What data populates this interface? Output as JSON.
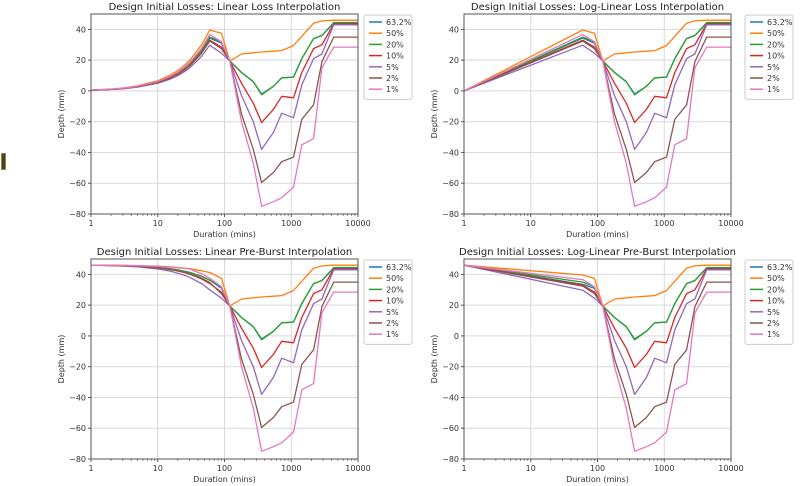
{
  "figure": {
    "side_marker_color": "#4a4310"
  },
  "series_meta": [
    {
      "name": "63.2%",
      "color": "#1f77b4"
    },
    {
      "name": "50%",
      "color": "#ff7f0e"
    },
    {
      "name": "20%",
      "color": "#2ca02c"
    },
    {
      "name": "10%",
      "color": "#d62728"
    },
    {
      "name": "5%",
      "color": "#9467bd"
    },
    {
      "name": "2%",
      "color": "#8c564b"
    },
    {
      "name": "1%",
      "color": "#e377c2"
    }
  ],
  "chart_data": [
    {
      "type": "line",
      "title": "Design Initial Losses: Linear Loss Interpolation",
      "xlabel": "Duration (mins)",
      "ylabel": "Depth (mm)",
      "xscale": "log",
      "xlim": [
        1,
        10000
      ],
      "ylim": [
        -80,
        50
      ],
      "xticks": [
        1,
        10,
        100,
        1000,
        10000
      ],
      "xtick_labels": [
        "1",
        "10",
        "100",
        "1000",
        "10000"
      ],
      "yticks": [
        -80,
        -60,
        -40,
        -20,
        0,
        20,
        40
      ],
      "ytick_labels": [
        "−80",
        "−60",
        "−40",
        "−20",
        "0",
        "20",
        "40"
      ],
      "grid": true,
      "legend": "outside-right-top",
      "x": [
        1,
        2,
        3,
        5,
        10,
        15,
        20,
        25,
        30,
        45,
        60,
        90,
        120,
        180,
        270,
        360,
        540,
        720,
        1080,
        1440,
        2160,
        2880,
        4320,
        10080
      ],
      "series": [
        {
          "name": "63.2%",
          "values": [
            0.5,
            1.0,
            1.6,
            2.9,
            5.7,
            8.7,
            11.5,
            14.4,
            17.2,
            25.8,
            34.4,
            31.0,
            19.5,
            12.0,
            6.0,
            -2.0,
            3.0,
            8.5,
            9.0,
            21.0,
            34.0,
            36.0,
            44.0,
            44.0
          ]
        },
        {
          "name": "50%",
          "values": [
            0.6,
            1.2,
            1.9,
            3.3,
            6.6,
            10.0,
            13.2,
            16.5,
            19.8,
            29.7,
            39.6,
            37.5,
            19.5,
            24.0,
            24.8,
            25.3,
            25.8,
            26.2,
            29.5,
            35.5,
            44.0,
            45.5,
            46.0,
            46.0
          ]
        },
        {
          "name": "20%",
          "values": [
            0.5,
            1.0,
            1.6,
            2.9,
            5.8,
            8.8,
            11.7,
            14.6,
            17.5,
            26.3,
            35.0,
            32.0,
            19.5,
            12.0,
            6.0,
            -2.5,
            3.0,
            8.5,
            9.0,
            21.0,
            34.0,
            36.0,
            44.5,
            44.5
          ]
        },
        {
          "name": "10%",
          "values": [
            0.5,
            1.0,
            1.6,
            2.8,
            5.5,
            8.3,
            11.0,
            13.8,
            16.5,
            24.8,
            33.0,
            28.5,
            19.5,
            5.0,
            -8.0,
            -20.5,
            -12.0,
            -3.5,
            -4.5,
            12.0,
            27.5,
            30.0,
            43.5,
            43.5
          ]
        },
        {
          "name": "5%",
          "values": [
            0.5,
            0.9,
            1.4,
            2.5,
            5.0,
            7.5,
            9.9,
            12.4,
            14.9,
            22.3,
            29.7,
            24.5,
            19.5,
            -3.0,
            -20.0,
            -38.0,
            -27.0,
            -14.5,
            -17.5,
            4.0,
            21.0,
            24.0,
            43.0,
            43.0
          ]
        },
        {
          "name": "2%",
          "values": [
            0.5,
            1.0,
            1.6,
            2.7,
            5.4,
            8.1,
            10.8,
            13.5,
            16.2,
            24.3,
            32.4,
            27.5,
            19.5,
            -15.0,
            -38.0,
            -59.5,
            -53.0,
            -46.0,
            -43.0,
            -18.5,
            -9.0,
            19.0,
            35.0,
            35.0
          ]
        },
        {
          "name": "1%",
          "values": [
            0.6,
            1.2,
            1.8,
            3.0,
            6.1,
            9.2,
            12.2,
            15.3,
            18.3,
            27.5,
            36.6,
            32.0,
            19.5,
            -20.0,
            -47.0,
            -75.0,
            -72.0,
            -69.5,
            -62.5,
            -35.0,
            -31.0,
            15.0,
            28.5,
            28.5
          ]
        }
      ]
    },
    {
      "type": "line",
      "title": "Design Initial Losses: Log-Linear Loss Interpolation",
      "xlabel": "Duration (mins)",
      "ylabel": "Depth (mm)",
      "xscale": "log",
      "xlim": [
        1,
        10000
      ],
      "ylim": [
        -80,
        50
      ],
      "xticks": [
        1,
        10,
        100,
        1000,
        10000
      ],
      "xtick_labels": [
        "1",
        "10",
        "100",
        "1000",
        "10000"
      ],
      "yticks": [
        -80,
        -60,
        -40,
        -20,
        0,
        20,
        40
      ],
      "ytick_labels": [
        "−80",
        "−60",
        "−40",
        "−20",
        "0",
        "20",
        "40"
      ],
      "grid": true,
      "legend": "outside-right-top",
      "x": [
        1,
        60,
        90,
        120,
        180,
        270,
        360,
        540,
        720,
        1080,
        1440,
        2160,
        2880,
        4320,
        10080
      ],
      "series": [
        {
          "name": "63.2%",
          "values": [
            0,
            34.4,
            31.0,
            19.5,
            12.0,
            6.0,
            -2.0,
            3.0,
            8.5,
            9.0,
            21.0,
            34.0,
            36.0,
            44.0,
            44.0
          ]
        },
        {
          "name": "50%",
          "values": [
            0,
            39.6,
            37.5,
            19.5,
            24.0,
            24.8,
            25.3,
            25.8,
            26.2,
            29.5,
            35.5,
            44.0,
            45.5,
            46.0,
            46.0
          ]
        },
        {
          "name": "20%",
          "values": [
            0,
            35.0,
            32.0,
            19.5,
            12.0,
            6.0,
            -2.5,
            3.0,
            8.5,
            9.0,
            21.0,
            34.0,
            36.0,
            44.5,
            44.5
          ]
        },
        {
          "name": "10%",
          "values": [
            0,
            33.0,
            28.5,
            19.5,
            5.0,
            -8.0,
            -20.5,
            -12.0,
            -3.5,
            -4.5,
            12.0,
            27.5,
            30.0,
            43.5,
            43.5
          ]
        },
        {
          "name": "5%",
          "values": [
            0,
            29.7,
            24.5,
            19.5,
            -3.0,
            -20.0,
            -38.0,
            -27.0,
            -14.5,
            -17.5,
            4.0,
            21.0,
            24.0,
            43.0,
            43.0
          ]
        },
        {
          "name": "2%",
          "values": [
            0,
            32.4,
            27.5,
            19.5,
            -15.0,
            -38.0,
            -59.5,
            -53.0,
            -46.0,
            -43.0,
            -18.5,
            -9.0,
            19.0,
            35.0,
            35.0
          ]
        },
        {
          "name": "1%",
          "values": [
            0,
            36.6,
            32.0,
            19.5,
            -20.0,
            -47.0,
            -75.0,
            -72.0,
            -69.5,
            -62.5,
            -35.0,
            -31.0,
            15.0,
            28.5,
            28.5
          ]
        }
      ]
    },
    {
      "type": "line",
      "title": "Design Initial Losses: Linear Pre-Burst Interpolation",
      "xlabel": "Duration (mins)",
      "ylabel": "Depth (mm)",
      "xscale": "log",
      "xlim": [
        1,
        10000
      ],
      "ylim": [
        -80,
        50
      ],
      "xticks": [
        1,
        10,
        100,
        1000,
        10000
      ],
      "xtick_labels": [
        "1",
        "10",
        "100",
        "1000",
        "10000"
      ],
      "yticks": [
        -80,
        -60,
        -40,
        -20,
        0,
        20,
        40
      ],
      "ytick_labels": [
        "−80",
        "−60",
        "−40",
        "−20",
        "0",
        "20",
        "40"
      ],
      "grid": true,
      "legend": "outside-right-top",
      "x": [
        1,
        2,
        3,
        5,
        10,
        15,
        20,
        25,
        30,
        45,
        60,
        90,
        120,
        180,
        270,
        360,
        540,
        720,
        1080,
        1440,
        2160,
        2880,
        4320,
        10080
      ],
      "series": [
        {
          "name": "63.2%",
          "values": [
            46.0,
            45.8,
            45.7,
            45.4,
            44.5,
            43.7,
            42.9,
            42.1,
            41.3,
            38.8,
            36.3,
            31.0,
            19.5,
            12.0,
            6.0,
            -2.0,
            3.0,
            8.5,
            9.0,
            21.0,
            34.0,
            36.0,
            44.0,
            44.0
          ]
        },
        {
          "name": "50%",
          "values": [
            46.0,
            46.0,
            45.9,
            45.7,
            45.3,
            44.9,
            44.5,
            44.1,
            43.7,
            42.4,
            41.2,
            37.5,
            19.5,
            24.0,
            24.8,
            25.3,
            25.8,
            26.2,
            29.5,
            35.5,
            44.0,
            45.5,
            46.0,
            46.0
          ]
        },
        {
          "name": "20%",
          "values": [
            46.0,
            45.8,
            45.7,
            45.4,
            44.5,
            43.7,
            42.9,
            42.1,
            41.3,
            38.8,
            36.3,
            32.0,
            19.5,
            12.0,
            6.0,
            -2.5,
            3.0,
            8.5,
            9.0,
            21.0,
            34.0,
            36.0,
            44.5,
            44.5
          ]
        },
        {
          "name": "10%",
          "values": [
            46.0,
            45.8,
            45.6,
            45.2,
            44.2,
            43.2,
            42.2,
            41.2,
            40.2,
            37.1,
            34.1,
            28.5,
            19.5,
            5.0,
            -8.0,
            -20.5,
            -12.0,
            -3.5,
            -4.5,
            12.0,
            27.5,
            30.0,
            43.5,
            43.5
          ]
        },
        {
          "name": "5%",
          "values": [
            46.0,
            45.7,
            45.4,
            44.9,
            43.5,
            42.2,
            40.8,
            39.5,
            38.1,
            34.1,
            30.0,
            24.5,
            19.5,
            -3.0,
            -20.0,
            -38.0,
            -27.0,
            -14.5,
            -17.5,
            4.0,
            21.0,
            24.0,
            43.0,
            43.0
          ]
        },
        {
          "name": "2%",
          "values": [
            46.0,
            45.8,
            45.6,
            45.2,
            44.2,
            43.3,
            42.3,
            41.4,
            40.5,
            37.6,
            34.7,
            27.5,
            19.5,
            -15.0,
            -38.0,
            -59.5,
            -53.0,
            -46.0,
            -43.0,
            -18.5,
            -9.0,
            19.0,
            35.0,
            35.0
          ]
        },
        {
          "name": "1%",
          "values": [
            46.0,
            45.9,
            45.8,
            45.6,
            45.2,
            44.8,
            44.3,
            43.9,
            43.5,
            40.5,
            37.5,
            32.0,
            19.5,
            -20.0,
            -47.0,
            -75.0,
            -72.0,
            -69.5,
            -62.5,
            -35.0,
            -31.0,
            15.0,
            28.5,
            28.5
          ]
        }
      ]
    },
    {
      "type": "line",
      "title": "Design Initial Losses: Log-Linear Pre-Burst Interpolation",
      "xlabel": "Duration (mins)",
      "ylabel": "Depth (mm)",
      "xscale": "log",
      "xlim": [
        1,
        10000
      ],
      "ylim": [
        -80,
        50
      ],
      "xticks": [
        1,
        10,
        100,
        1000,
        10000
      ],
      "xtick_labels": [
        "1",
        "10",
        "100",
        "1000",
        "10000"
      ],
      "yticks": [
        -80,
        -60,
        -40,
        -20,
        0,
        20,
        40
      ],
      "ytick_labels": [
        "−80",
        "−60",
        "−40",
        "−20",
        "0",
        "20",
        "40"
      ],
      "grid": true,
      "legend": "outside-right-top",
      "x": [
        1,
        60,
        90,
        120,
        180,
        270,
        360,
        540,
        720,
        1080,
        1440,
        2160,
        2880,
        4320,
        10080
      ],
      "series": [
        {
          "name": "63.2%",
          "values": [
            46.0,
            33.5,
            31.0,
            19.5,
            12.0,
            6.0,
            -2.0,
            3.0,
            8.5,
            9.0,
            21.0,
            34.0,
            36.0,
            44.0,
            44.0
          ]
        },
        {
          "name": "50%",
          "values": [
            46.0,
            39.6,
            37.5,
            19.5,
            24.0,
            24.8,
            25.3,
            25.8,
            26.2,
            29.5,
            35.5,
            44.0,
            45.5,
            46.0,
            46.0
          ]
        },
        {
          "name": "20%",
          "values": [
            46.0,
            35.0,
            32.0,
            19.5,
            12.0,
            6.0,
            -2.5,
            3.0,
            8.5,
            9.0,
            21.0,
            34.0,
            36.0,
            44.5,
            44.5
          ]
        },
        {
          "name": "10%",
          "values": [
            46.0,
            33.0,
            28.5,
            19.5,
            5.0,
            -8.0,
            -20.5,
            -12.0,
            -3.5,
            -4.5,
            12.0,
            27.5,
            30.0,
            43.5,
            43.5
          ]
        },
        {
          "name": "5%",
          "values": [
            46.0,
            29.7,
            24.5,
            19.5,
            -3.0,
            -20.0,
            -38.0,
            -27.0,
            -14.5,
            -17.5,
            4.0,
            21.0,
            24.0,
            43.0,
            43.0
          ]
        },
        {
          "name": "2%",
          "values": [
            46.0,
            32.4,
            27.5,
            19.5,
            -15.0,
            -38.0,
            -59.5,
            -53.0,
            -46.0,
            -43.0,
            -18.5,
            -9.0,
            19.0,
            35.0,
            35.0
          ]
        },
        {
          "name": "1%",
          "values": [
            46.0,
            36.6,
            32.0,
            19.5,
            -20.0,
            -47.0,
            -75.0,
            -72.0,
            -69.5,
            -62.5,
            -35.0,
            -31.0,
            15.0,
            28.5,
            28.5
          ]
        }
      ]
    }
  ]
}
